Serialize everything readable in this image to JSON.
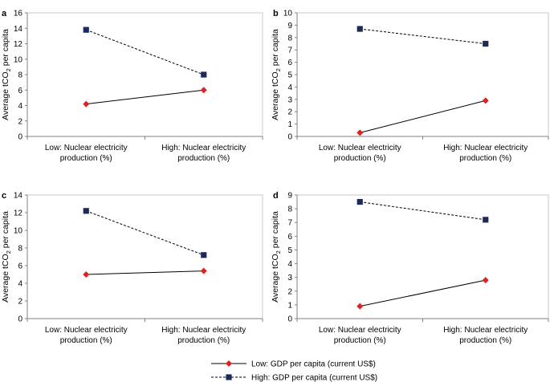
{
  "chart_data": [
    {
      "panel": "a",
      "type": "line",
      "categories": [
        "Low: Nuclear electricity production (%)",
        "High: Nuclear electricity production (%)"
      ],
      "series": [
        {
          "name": "Low: GDP per capita (current US$)",
          "values": [
            4.2,
            6.0
          ],
          "color": "#e0211f",
          "marker": "diamond",
          "dash": "solid"
        },
        {
          "name": "High: GDP per capita (current US$)",
          "values": [
            13.8,
            8.0
          ],
          "color": "#1c2a5a",
          "marker": "square",
          "dash": "dashed"
        }
      ],
      "ylabel": "Average tCO2 per capita",
      "ylim": [
        0,
        16
      ],
      "ystep": 2
    },
    {
      "panel": "b",
      "type": "line",
      "categories": [
        "Low: Nuclear electricity production (%)",
        "High: Nuclear electricity production (%)"
      ],
      "series": [
        {
          "name": "Low: GDP per capita (current US$)",
          "values": [
            0.3,
            2.9
          ],
          "color": "#e0211f",
          "marker": "diamond",
          "dash": "solid"
        },
        {
          "name": "High: GDP per capita (current US$)",
          "values": [
            8.7,
            7.5
          ],
          "color": "#1c2a5a",
          "marker": "square",
          "dash": "dashed"
        }
      ],
      "ylabel": "Average tCO2 per capita",
      "ylim": [
        0,
        10
      ],
      "ystep": 1
    },
    {
      "panel": "c",
      "type": "line",
      "categories": [
        "Low: Nuclear electricity production (%)",
        "High: Nuclear electricity production (%)"
      ],
      "series": [
        {
          "name": "Low: GDP per capita (current US$)",
          "values": [
            5.0,
            5.4
          ],
          "color": "#e0211f",
          "marker": "diamond",
          "dash": "solid"
        },
        {
          "name": "High: GDP per capita (current US$)",
          "values": [
            12.2,
            7.2
          ],
          "color": "#1c2a5a",
          "marker": "square",
          "dash": "dashed"
        }
      ],
      "ylabel": "Average tCO2 per capita",
      "ylim": [
        0,
        14
      ],
      "ystep": 2
    },
    {
      "panel": "d",
      "type": "line",
      "categories": [
        "Low: Nuclear electricity production (%)",
        "High: Nuclear electricity production (%)"
      ],
      "series": [
        {
          "name": "Low: GDP per capita (current US$)",
          "values": [
            0.9,
            2.8
          ],
          "color": "#e0211f",
          "marker": "diamond",
          "dash": "solid"
        },
        {
          "name": "High: GDP per capita (current US$)",
          "values": [
            8.5,
            7.2
          ],
          "color": "#1c2a5a",
          "marker": "square",
          "dash": "dashed"
        }
      ],
      "ylabel": "Average tCO2 per capita",
      "ylim": [
        0,
        9
      ],
      "ystep": 1
    }
  ],
  "legend": {
    "items": [
      {
        "label": "Low: GDP per capita (current US$)",
        "color": "#e0211f",
        "marker": "diamond",
        "dash": "solid"
      },
      {
        "label": "High: GDP per capita (current US$)",
        "color": "#1c2a5a",
        "marker": "square",
        "dash": "dashed"
      }
    ]
  }
}
